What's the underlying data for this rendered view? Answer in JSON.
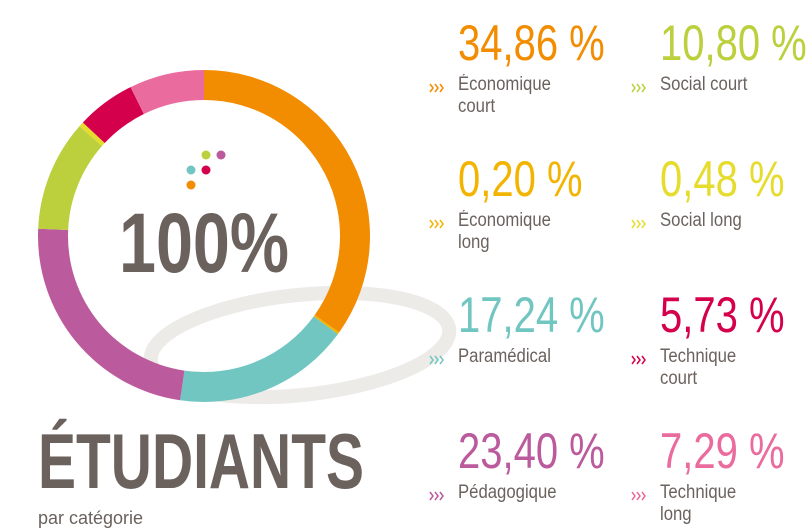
{
  "chart_data": {
    "type": "pie",
    "donut": true,
    "title": "ÉTUDIANTS",
    "subtitle": "par catégorie",
    "center_label": "100%",
    "categories": [
      "Économique court",
      "Économique long",
      "Paramédical",
      "Pédagogique",
      "Social court",
      "Social long",
      "Technique court",
      "Technique long"
    ],
    "values": [
      34.86,
      0.2,
      17.24,
      23.4,
      10.8,
      0.48,
      5.73,
      7.29
    ],
    "value_labels": [
      "34,86 %",
      "0,20 %",
      "17,24 %",
      "23,40 %",
      "10,80 %",
      "0,48 %",
      "5,73 %",
      "7,29 %"
    ],
    "colors": [
      "#f28c00",
      "#f2b400",
      "#72c6c1",
      "#bb5a9c",
      "#bccf3c",
      "#e6dc2e",
      "#d5004b",
      "#ea6c9f"
    ]
  }
}
